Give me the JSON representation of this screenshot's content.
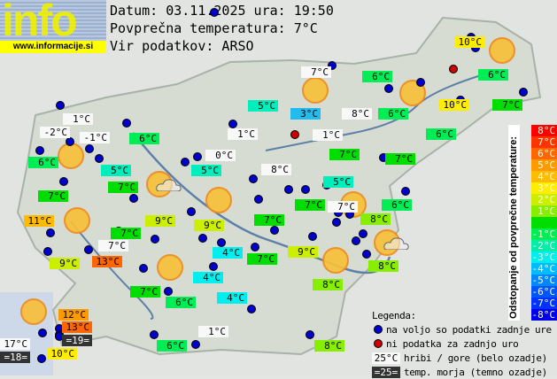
{
  "header": {
    "logo_text": "info",
    "logo_url": "www.informacije.si",
    "date_line": "Datum: 03.11.2025 ura: 19:50",
    "avg_line": "Povprečna temperatura: 7°C",
    "source_line": "Vir podatkov: ARSO"
  },
  "scale": {
    "title": "Odstopanje od povprečne temperature:",
    "steps": [
      {
        "label": "8°C",
        "color": "#ff0000"
      },
      {
        "label": "7°C",
        "color": "#ff3300"
      },
      {
        "label": "6°C",
        "color": "#ff6600"
      },
      {
        "label": "5°C",
        "color": "#ff9900"
      },
      {
        "label": "4°C",
        "color": "#ffbb00"
      },
      {
        "label": "3°C",
        "color": "#ffee00"
      },
      {
        "label": "2°C",
        "color": "#ccee00"
      },
      {
        "label": "1°C",
        "color": "#88ee00"
      },
      {
        "label": "",
        "color": "#00dd00"
      },
      {
        "label": "-1°C",
        "color": "#00ee55"
      },
      {
        "label": "-2°C",
        "color": "#00eeaa"
      },
      {
        "label": "-3°C",
        "color": "#00eeee"
      },
      {
        "label": "-4°C",
        "color": "#00bbff"
      },
      {
        "label": "-5°C",
        "color": "#0088ff"
      },
      {
        "label": "-6°C",
        "color": "#0055ff"
      },
      {
        "label": "-7°C",
        "color": "#0033ff"
      },
      {
        "label": "-8°C",
        "color": "#0000ee"
      }
    ]
  },
  "legend": {
    "title": "Legenda:",
    "blue_dot": "na voljo so podatki zadnje ure",
    "red_dot": "ni podatka za zadnjo uro",
    "hill_sample": "25°C",
    "hill_text": "hribi / gore (belo ozadje)",
    "sea_sample": "=25=",
    "sea_text": "temp. morja (temno ozadje)"
  },
  "colors": {
    "hill": "#f8f8f8",
    "sea": "#333333",
    "blue_dot": "#0000cc",
    "red_dot": "#cc0000",
    "sun": "#f7c03a"
  },
  "labels": [
    {
      "t": "10°C",
      "c": "#ffee00"
    },
    {
      "t": "7°C",
      "c": "#f8f8f8"
    },
    {
      "t": "6°C",
      "c": "#00ee55"
    },
    {
      "t": "6°C",
      "c": "#00ee55"
    },
    {
      "t": "5°C",
      "c": "#00eebb"
    },
    {
      "t": "3°C",
      "c": "#22bbee"
    },
    {
      "t": "8°C",
      "c": "#f8f8f8"
    },
    {
      "t": "6°C",
      "c": "#00ee55"
    },
    {
      "t": "10°C",
      "c": "#ffee00"
    },
    {
      "t": "7°C",
      "c": "#00dd00"
    },
    {
      "t": "1°C",
      "c": "#f8f8f8"
    },
    {
      "t": "-2°C",
      "c": "#f8f8f8"
    },
    {
      "t": "-1°C",
      "c": "#f8f8f8"
    },
    {
      "t": "6°C",
      "c": "#00ee55"
    },
    {
      "t": "1°C",
      "c": "#f8f8f8"
    },
    {
      "t": "1°C",
      "c": "#f8f8f8"
    },
    {
      "t": "6°C",
      "c": "#00ee55"
    },
    {
      "t": "6°C",
      "c": "#00ee55"
    },
    {
      "t": "0°C",
      "c": "#f8f8f8"
    },
    {
      "t": "7°C",
      "c": "#00dd00"
    },
    {
      "t": "7°C",
      "c": "#00dd00"
    },
    {
      "t": "5°C",
      "c": "#00eebb"
    },
    {
      "t": "5°C",
      "c": "#00eebb"
    },
    {
      "t": "8°C",
      "c": "#f8f8f8"
    },
    {
      "t": "5°C",
      "c": "#00eebb"
    },
    {
      "t": "7°C",
      "c": "#00dd00"
    },
    {
      "t": "7°C",
      "c": "#00dd00"
    },
    {
      "t": "7°C",
      "c": "#00dd00"
    },
    {
      "t": "7°C",
      "c": "#f8f8f8"
    },
    {
      "t": "6°C",
      "c": "#00ee55"
    },
    {
      "t": "9°C",
      "c": "#ccee00"
    },
    {
      "t": "9°C",
      "c": "#ccee00"
    },
    {
      "t": "7°C",
      "c": "#00dd00"
    },
    {
      "t": "8°C",
      "c": "#88ee00"
    },
    {
      "t": "11°C",
      "c": "#ffbb00"
    },
    {
      "t": "7°C",
      "c": "#00dd00"
    },
    {
      "t": "7°C",
      "c": "#f8f8f8"
    },
    {
      "t": "4°C",
      "c": "#00eeee"
    },
    {
      "t": "7°C",
      "c": "#00dd00"
    },
    {
      "t": "9°C",
      "c": "#ccee00"
    },
    {
      "t": "8°C",
      "c": "#88ee00"
    },
    {
      "t": "9°C",
      "c": "#ccee00"
    },
    {
      "t": "13°C",
      "c": "#ff6600"
    },
    {
      "t": "4°C",
      "c": "#00eeee"
    },
    {
      "t": "8°C",
      "c": "#88ee00"
    },
    {
      "t": "7°C",
      "c": "#00dd00"
    },
    {
      "t": "6°C",
      "c": "#00ee55"
    },
    {
      "t": "4°C",
      "c": "#00eeee"
    },
    {
      "t": "12°C",
      "c": "#ff9900"
    },
    {
      "t": "13°C",
      "c": "#ff6600"
    },
    {
      "t": "=19=",
      "c": "#333333"
    },
    {
      "t": "17°C",
      "c": "#f8f8f8"
    },
    {
      "t": "=18=",
      "c": "#333333"
    },
    {
      "t": "10°C",
      "c": "#ffee00"
    },
    {
      "t": "1°C",
      "c": "#f8f8f8"
    },
    {
      "t": "6°C",
      "c": "#00ee55"
    },
    {
      "t": "8°C",
      "c": "#88ee00"
    }
  ],
  "weather_icons": [
    "sun-icon",
    "sun-icon",
    "sun-icon",
    "sun-icon",
    "sun-cloud-icon",
    "sun-icon",
    "sun-icon",
    "sun-icon",
    "sun-icon",
    "sun-icon",
    "sun-icon",
    "sun-cloud-icon"
  ]
}
